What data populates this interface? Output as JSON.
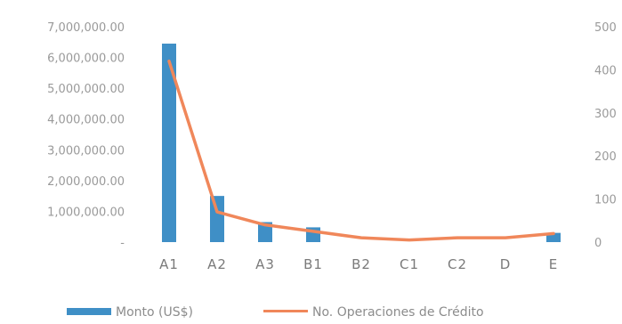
{
  "chart_data": {
    "type": "bar",
    "combo": "bar+line",
    "categories": [
      "A1",
      "A2",
      "A3",
      "B1",
      "B2",
      "C1",
      "C2",
      "D",
      "E"
    ],
    "series": [
      {
        "name": "Monto (US$)",
        "type": "bar",
        "axis": "left",
        "color": "#3f8fc6",
        "values": [
          6450000,
          1500000,
          650000,
          480000,
          0,
          0,
          0,
          0,
          300000
        ]
      },
      {
        "name": "No. Operaciones de Crédito",
        "type": "line",
        "axis": "right",
        "color": "#f0875a",
        "values": [
          420,
          70,
          40,
          25,
          10,
          5,
          10,
          10,
          20
        ]
      }
    ],
    "y_left": {
      "ylim": [
        0,
        7000000
      ],
      "tick_labels": [
        "-",
        "1,000,000.00",
        "2,000,000.00",
        "3,000,000.00",
        "4,000,000.00",
        "5,000,000.00",
        "6,000,000.00",
        "7,000,000.00"
      ]
    },
    "y_right": {
      "ylim": [
        0,
        500
      ],
      "tick_labels": [
        "0",
        "100",
        "200",
        "300",
        "400",
        "500"
      ]
    },
    "grid": false,
    "legend_position": "bottom"
  }
}
